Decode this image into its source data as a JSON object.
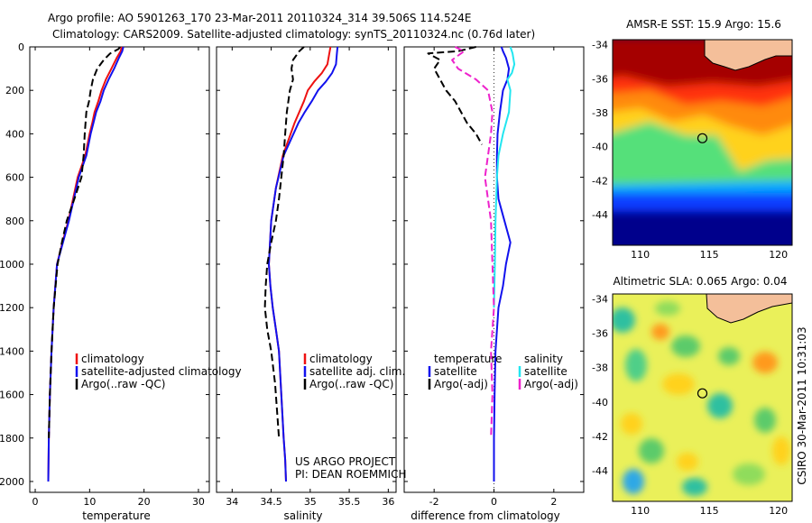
{
  "header": {
    "line1": "Argo profile: AO 5901263_170 23-Mar-2011 20110324_314 39.506S 114.524E",
    "line2": "Climatology: CARS2009. Satellite-adjusted climatology: synTS_20110324.nc (0.76d later)"
  },
  "credit": {
    "project": "US ARGO PROJECT",
    "pi": "PI: DEAN ROEMMICH"
  },
  "stamp": "CSIRO 30-Mar-2011 10:31:03",
  "colors": {
    "climatology": "#ee1111",
    "satellite": "#1111ee",
    "argo": "#000000",
    "salinity_sat": "#22e6f0",
    "salinity_argo": "#ee22cc",
    "land": "#f4bf9a"
  },
  "chart_data": [
    {
      "type": "line",
      "xlabel": "temperature",
      "xlim": [
        -1,
        32
      ],
      "ylim": [
        2050,
        0
      ],
      "x_ticks": [
        0,
        10,
        20,
        30
      ],
      "y_ticks": [
        0,
        200,
        400,
        600,
        800,
        1000,
        1200,
        1400,
        1600,
        1800,
        2000
      ],
      "legend": [
        "climatology",
        "satellite-adjusted climatology",
        "Argo(..raw -QC)"
      ],
      "series": [
        {
          "name": "climatology",
          "x": [
            15.9,
            15.7,
            15.0,
            14.0,
            13.0,
            12.2,
            11.6,
            10.9,
            10.5,
            10.0,
            9.2,
            7.8,
            6.1,
            5.0,
            4.0,
            3.4,
            3.0,
            2.7,
            2.5,
            2.4
          ],
          "y": [
            0,
            20,
            50,
            100,
            150,
            200,
            250,
            300,
            350,
            400,
            500,
            600,
            800,
            900,
            1000,
            1200,
            1400,
            1600,
            1800,
            2000
          ]
        },
        {
          "name": "satellite-adjusted climatology",
          "x": [
            16.2,
            16.0,
            15.4,
            14.5,
            13.5,
            12.6,
            12.0,
            11.2,
            10.7,
            10.2,
            9.4,
            8.0,
            6.2,
            5.1,
            4.0,
            3.4,
            3.0,
            2.7,
            2.5,
            2.4
          ],
          "y": [
            0,
            20,
            50,
            100,
            150,
            200,
            250,
            300,
            350,
            400,
            500,
            600,
            800,
            900,
            1000,
            1200,
            1400,
            1600,
            1800,
            2000
          ]
        },
        {
          "name": "Argo(..raw -QC)",
          "x": [
            15.6,
            15.3,
            13.8,
            12.6,
            11.4,
            10.6,
            10.2,
            9.9,
            9.4,
            9.1,
            8.9,
            8.5,
            7.2,
            5.8,
            4.9,
            4.1,
            3.4,
            3.0,
            2.7,
            2.5
          ],
          "y": [
            0,
            10,
            30,
            60,
            100,
            150,
            200,
            250,
            300,
            400,
            500,
            600,
            700,
            800,
            900,
            1000,
            1200,
            1400,
            1600,
            1800
          ]
        }
      ]
    },
    {
      "type": "line",
      "xlabel": "salinity",
      "xlim": [
        33.8,
        36.1
      ],
      "ylim": [
        2050,
        0
      ],
      "x_ticks": [
        34,
        34.5,
        35,
        35.5,
        36
      ],
      "legend": [
        "climatology",
        "satellite adj. clim.",
        "Argo(..raw -QC)"
      ],
      "series": [
        {
          "name": "climatology",
          "x": [
            35.26,
            35.24,
            35.22,
            35.15,
            35.05,
            34.97,
            34.92,
            34.86,
            34.8,
            34.65,
            34.56,
            34.5,
            34.47,
            34.49,
            34.52,
            34.56,
            34.6,
            34.63,
            34.66,
            34.68,
            34.69
          ],
          "y": [
            0,
            40,
            80,
            120,
            160,
            200,
            250,
            300,
            350,
            500,
            650,
            800,
            1000,
            1100,
            1200,
            1300,
            1400,
            1600,
            1800,
            1900,
            2000
          ]
        },
        {
          "name": "satellite adj. clim.",
          "x": [
            35.35,
            35.34,
            35.33,
            35.28,
            35.2,
            35.1,
            35.02,
            34.93,
            34.85,
            34.66,
            34.56,
            34.5,
            34.47,
            34.49,
            34.52,
            34.56,
            34.6,
            34.63,
            34.66,
            34.68,
            34.69
          ],
          "y": [
            0,
            40,
            80,
            120,
            160,
            200,
            250,
            300,
            350,
            500,
            650,
            800,
            1000,
            1100,
            1200,
            1300,
            1400,
            1600,
            1800,
            1900,
            2000
          ]
        },
        {
          "name": "Argo(..raw -QC)",
          "x": [
            34.92,
            34.86,
            34.78,
            34.76,
            34.78,
            34.74,
            34.7,
            34.68,
            34.66,
            34.63,
            34.6,
            34.56,
            34.5,
            34.45,
            34.43,
            34.42,
            34.45,
            34.5,
            34.55,
            34.58,
            34.6
          ],
          "y": [
            0,
            20,
            60,
            100,
            150,
            200,
            300,
            400,
            500,
            600,
            700,
            800,
            900,
            1000,
            1100,
            1200,
            1300,
            1400,
            1550,
            1700,
            1800
          ]
        }
      ]
    },
    {
      "type": "line",
      "xlabel": "difference from climatology",
      "xlim": [
        -3,
        3
      ],
      "ylim": [
        2050,
        0
      ],
      "x_ticks": [
        -2,
        0,
        2
      ],
      "legend": [
        "temperature",
        "satellite",
        "Argo(-adj)",
        "salinity",
        "satellite",
        "Argo(-adj)"
      ],
      "series": [
        {
          "name": "temperature satellite",
          "x": [
            0.25,
            0.3,
            0.4,
            0.5,
            0.45,
            0.3,
            0.2,
            0.12,
            0.1,
            0.1,
            0.15,
            0.35,
            0.55,
            0.4,
            0.3,
            0.15,
            0.05,
            0.02,
            0.0,
            0.0
          ],
          "y": [
            0,
            20,
            50,
            100,
            150,
            200,
            300,
            400,
            500,
            600,
            700,
            800,
            900,
            1000,
            1100,
            1200,
            1400,
            1600,
            1800,
            2000
          ]
        },
        {
          "name": "temperature Argo(-adj)",
          "x": [
            -0.6,
            -1.2,
            -2.2,
            -1.8,
            -2.0,
            -1.6,
            -1.3,
            -0.9,
            -0.6,
            -0.4
          ],
          "y": [
            0,
            20,
            30,
            60,
            100,
            200,
            250,
            350,
            400,
            450
          ]
        },
        {
          "name": "salinity satellite",
          "x": [
            0.55,
            0.62,
            0.68,
            0.6,
            0.45,
            0.55,
            0.5,
            0.3,
            0.15,
            0.1,
            0.05,
            0.03,
            0.0
          ],
          "y": [
            0,
            30,
            80,
            120,
            150,
            200,
            300,
            400,
            500,
            600,
            800,
            1000,
            1200
          ]
        },
        {
          "name": "salinity Argo(-adj)",
          "x": [
            -1.3,
            -1.0,
            -1.4,
            -1.2,
            -0.6,
            -0.2,
            -0.05,
            -0.1,
            -0.2,
            -0.3,
            -0.1,
            -0.05,
            0.0,
            -0.1,
            -0.05,
            -0.1
          ],
          "y": [
            0,
            20,
            60,
            100,
            150,
            200,
            300,
            400,
            500,
            600,
            800,
            1000,
            1200,
            1400,
            1600,
            1800
          ]
        }
      ]
    },
    {
      "type": "heatmap",
      "title": "AMSR-E SST: 15.9 Argo: 15.6",
      "xlim": [
        108,
        121
      ],
      "ylim": [
        -45.8,
        -33.7
      ],
      "x_ticks": [
        110,
        115,
        120
      ],
      "y_ticks": [
        -34,
        -36,
        -38,
        -40,
        -42,
        -44
      ],
      "argo_position": [
        114.5,
        -39.5
      ]
    },
    {
      "type": "heatmap",
      "title": "Altimetric SLA: 0.065 Argo: 0.04",
      "xlim": [
        108,
        121
      ],
      "ylim": [
        -45.8,
        -33.7
      ],
      "x_ticks": [
        110,
        115,
        120
      ],
      "y_ticks": [
        -34,
        -36,
        -38,
        -40,
        -42,
        -44
      ],
      "argo_position": [
        114.5,
        -39.5
      ]
    }
  ]
}
